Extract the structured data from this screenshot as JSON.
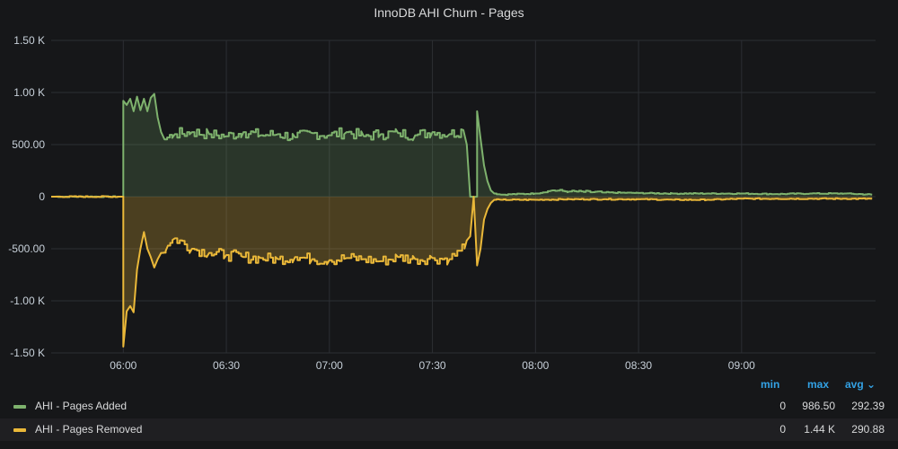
{
  "panel": {
    "title": "InnoDB AHI Churn - Pages"
  },
  "chart_data": {
    "type": "line",
    "title": "InnoDB AHI Churn - Pages",
    "xlabel": "",
    "ylabel": "",
    "xlim": [
      "05:39",
      "09:39"
    ],
    "ylim": [
      -1500,
      1500
    ],
    "y_ticks": [
      "1.50 K",
      "1.00 K",
      "500.00",
      "0",
      "-500.00",
      "-1.00 K",
      "-1.50 K"
    ],
    "y_tick_values": [
      1500,
      1000,
      500,
      0,
      -500,
      -1000,
      -1500
    ],
    "x_ticks": [
      "06:00",
      "06:30",
      "07:00",
      "07:30",
      "08:00",
      "08:30",
      "09:00"
    ],
    "grid": true,
    "legend_placement": "bottom",
    "series": [
      {
        "name": "AHI - Pages Added",
        "color": "#7eb26d",
        "fill": true,
        "points": [
          [
            "05:39",
            0
          ],
          [
            "05:59",
            0
          ],
          [
            "06:00",
            0
          ],
          [
            "06:00",
            920
          ],
          [
            "06:01",
            880
          ],
          [
            "06:02",
            940
          ],
          [
            "06:03",
            820
          ],
          [
            "06:04",
            960
          ],
          [
            "06:05",
            830
          ],
          [
            "06:06",
            940
          ],
          [
            "06:07",
            820
          ],
          [
            "06:08",
            950
          ],
          [
            "06:09",
            986.5
          ],
          [
            "06:10",
            760
          ],
          [
            "06:11",
            620
          ],
          [
            "06:12",
            550
          ],
          [
            "06:15",
            600
          ],
          [
            "06:20",
            620
          ],
          [
            "06:25",
            600
          ],
          [
            "06:30",
            580
          ],
          [
            "06:35",
            620
          ],
          [
            "06:40",
            590
          ],
          [
            "06:45",
            600
          ],
          [
            "06:50",
            570
          ],
          [
            "06:55",
            610
          ],
          [
            "07:00",
            590
          ],
          [
            "07:05",
            620
          ],
          [
            "07:10",
            580
          ],
          [
            "07:15",
            600
          ],
          [
            "07:20",
            610
          ],
          [
            "07:25",
            590
          ],
          [
            "07:30",
            620
          ],
          [
            "07:35",
            600
          ],
          [
            "07:39",
            640
          ],
          [
            "07:40",
            500
          ],
          [
            "07:41",
            0
          ],
          [
            "07:43",
            0
          ],
          [
            "07:43",
            820
          ],
          [
            "07:44",
            560
          ],
          [
            "07:45",
            300
          ],
          [
            "07:46",
            150
          ],
          [
            "07:47",
            60
          ],
          [
            "07:48",
            30
          ],
          [
            "07:50",
            20
          ],
          [
            "08:00",
            30
          ],
          [
            "08:05",
            60
          ],
          [
            "08:10",
            50
          ],
          [
            "08:20",
            40
          ],
          [
            "08:30",
            35
          ],
          [
            "08:40",
            30
          ],
          [
            "08:50",
            30
          ],
          [
            "09:00",
            30
          ],
          [
            "09:10",
            25
          ],
          [
            "09:20",
            30
          ],
          [
            "09:30",
            30
          ],
          [
            "09:38",
            20
          ]
        ]
      },
      {
        "name": "AHI - Pages Removed",
        "color": "#eab839",
        "fill": true,
        "points": [
          [
            "05:39",
            0
          ],
          [
            "05:59",
            0
          ],
          [
            "06:00",
            0
          ],
          [
            "06:00",
            -1440
          ],
          [
            "06:01",
            -1100
          ],
          [
            "06:02",
            -1050
          ],
          [
            "06:03",
            -1110
          ],
          [
            "06:04",
            -700
          ],
          [
            "06:05",
            -500
          ],
          [
            "06:06",
            -340
          ],
          [
            "06:07",
            -500
          ],
          [
            "06:08",
            -580
          ],
          [
            "06:09",
            -680
          ],
          [
            "06:10",
            -600
          ],
          [
            "06:11",
            -540
          ],
          [
            "06:13",
            -470
          ],
          [
            "06:15",
            -400
          ],
          [
            "06:20",
            -500
          ],
          [
            "06:25",
            -540
          ],
          [
            "06:30",
            -560
          ],
          [
            "06:35",
            -580
          ],
          [
            "06:40",
            -590
          ],
          [
            "06:45",
            -600
          ],
          [
            "06:50",
            -580
          ],
          [
            "06:55",
            -600
          ],
          [
            "07:00",
            -610
          ],
          [
            "07:05",
            -590
          ],
          [
            "07:10",
            -600
          ],
          [
            "07:15",
            -620
          ],
          [
            "07:20",
            -580
          ],
          [
            "07:25",
            -600
          ],
          [
            "07:30",
            -590
          ],
          [
            "07:35",
            -600
          ],
          [
            "07:38",
            -520
          ],
          [
            "07:40",
            -420
          ],
          [
            "07:41",
            -380
          ],
          [
            "07:42",
            0
          ],
          [
            "07:43",
            -660
          ],
          [
            "07:44",
            -500
          ],
          [
            "07:45",
            -220
          ],
          [
            "07:46",
            -120
          ],
          [
            "07:47",
            -60
          ],
          [
            "07:48",
            -30
          ],
          [
            "07:50",
            -30
          ],
          [
            "08:00",
            -30
          ],
          [
            "08:10",
            -25
          ],
          [
            "08:20",
            -25
          ],
          [
            "08:30",
            -25
          ],
          [
            "08:40",
            -30
          ],
          [
            "08:50",
            -30
          ],
          [
            "09:00",
            -20
          ],
          [
            "09:10",
            -20
          ],
          [
            "09:20",
            -20
          ],
          [
            "09:30",
            -20
          ],
          [
            "09:38",
            -20
          ]
        ]
      }
    ]
  },
  "legend": {
    "headers": {
      "min": "min",
      "max": "max",
      "avg": "avg ⌄"
    },
    "rows": [
      {
        "name": "AHI - Pages Added",
        "color": "#7eb26d",
        "min": "0",
        "max": "986.50",
        "avg": "292.39"
      },
      {
        "name": "AHI - Pages Removed",
        "color": "#eab839",
        "min": "0",
        "max": "1.44 K",
        "avg": "290.88"
      }
    ]
  },
  "colors": {
    "background": "#161719",
    "grid": "#2c2f33",
    "legend_header": "#33a2e5"
  }
}
